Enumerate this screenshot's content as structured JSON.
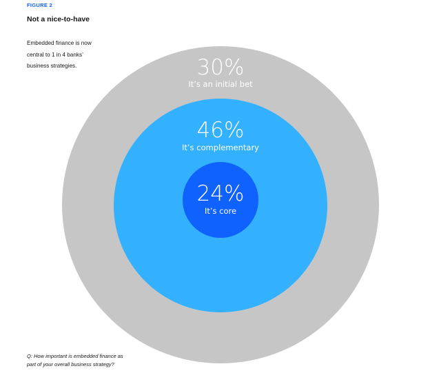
{
  "figure": {
    "label": "FIGURE 2",
    "title": "Not a nice-to-have",
    "subtitle_lines": [
      "Embedded finance is now",
      "central to 1 in 4 banks’",
      "business strategies."
    ],
    "question_lines": [
      "Q: How important is embedded finance as",
      "part of your overall business strategy?"
    ]
  },
  "colors": {
    "outer": "#c6c6c6",
    "middle": "#33b1ff",
    "inner": "#0f62fe",
    "label_accent": "#0f62fe",
    "text": "#161616"
  },
  "chart_data": {
    "type": "pie",
    "layout": "nested-circles",
    "title": "Not a nice-to-have",
    "categories": [
      "It’s an initial bet",
      "It’s complementary",
      "It’s core"
    ],
    "values": [
      30,
      46,
      24
    ],
    "value_labels": [
      "30%",
      "46%",
      "24%"
    ],
    "unit": "%"
  }
}
